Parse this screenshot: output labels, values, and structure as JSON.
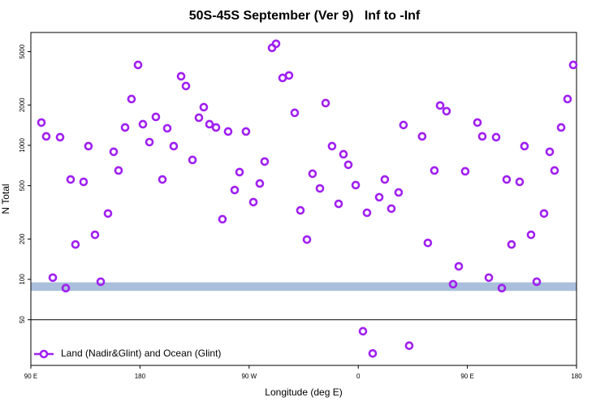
{
  "chart_data": {
    "type": "scatter",
    "title": "50S-45S September (Ver 9)   Inf to -Inf",
    "x_label": "Longitude (deg E)",
    "y_label": "N Total",
    "xlim": [
      90,
      540
    ],
    "xticks": [
      {
        "value": 90,
        "label": "90 E"
      },
      180,
      {
        "value": 270,
        "label": "90 W"
      },
      {
        "value": 360,
        "label": "0"
      },
      {
        "value": 450,
        "label": "90 E"
      },
      {
        "value": 540,
        "label": "180"
      }
    ],
    "ylim": [
      22.8,
      6950
    ],
    "ylog": true,
    "yticks": [
      50,
      100,
      200,
      500,
      1000,
      2000,
      5000
    ],
    "shaded_band": [
      82,
      95
    ],
    "band_color": "#a9bfdb",
    "hline": 50,
    "legend": "bottom-left",
    "series": [
      {
        "name": "Land (Nadir&Glint) and Ocean (Glint)",
        "color": "#a020f0",
        "x": [
          98.7,
          102.7,
          108.1,
          114.1,
          118.8,
          122.8,
          126.8,
          133.5,
          137.5,
          142.9,
          147.6,
          153.6,
          158.3,
          162.3,
          167.7,
          173.0,
          178.4,
          182.4,
          187.8,
          193.1,
          198.5,
          202.5,
          207.8,
          213.9,
          217.9,
          223.3,
          228.6,
          232.6,
          237.3,
          242.7,
          248.0,
          252.7,
          258.1,
          262.1,
          267.4,
          273.5,
          278.8,
          282.8,
          288.9,
          292.2,
          297.6,
          302.9,
          307.6,
          312.3,
          317.7,
          322.3,
          328.4,
          333.1,
          338.4,
          343.8,
          347.8,
          351.8,
          357.9,
          363.9,
          367.2,
          371.9,
          377.3,
          381.9,
          387.3,
          393.3,
          397.3,
          402.0,
          412.7,
          417.4,
          422.8,
          427.5,
          432.8,
          438.2,
          442.9,
          448.2,
          458.3,
          462.3,
          467.7,
          473.7,
          478.4,
          482.4,
          486.4,
          493.1,
          497.1,
          502.5,
          507.2,
          513.2,
          517.9,
          521.9,
          527.3,
          532.6,
          537.3
        ],
        "values": [
          1479,
          1166,
          103,
          1150,
          86,
          556,
          182,
          534,
          986,
          215,
          96,
          310,
          895,
          649,
          1359,
          2215,
          3981,
          1437,
          1057,
          1630,
          556,
          1340,
          986,
          3273,
          2770,
          778,
          1607,
          1927,
          1437,
          1359,
          281,
          1268,
          464,
          631,
          1268,
          377,
          519,
          757,
          5336,
          5723,
          3184,
          3321,
          1748,
          327,
          198,
          614,
          477,
          2066,
          986,
          366,
          858,
          716,
          505,
          41,
          314,
          28,
          410,
          556,
          337,
          445,
          1418,
          32,
          1166,
          187,
          649,
          1982,
          1798,
          92,
          125,
          640,
          1479,
          1166,
          103,
          1150,
          86,
          556,
          182,
          534,
          986,
          215,
          96,
          310,
          895,
          649,
          1359,
          2215,
          3981
        ]
      }
    ]
  }
}
